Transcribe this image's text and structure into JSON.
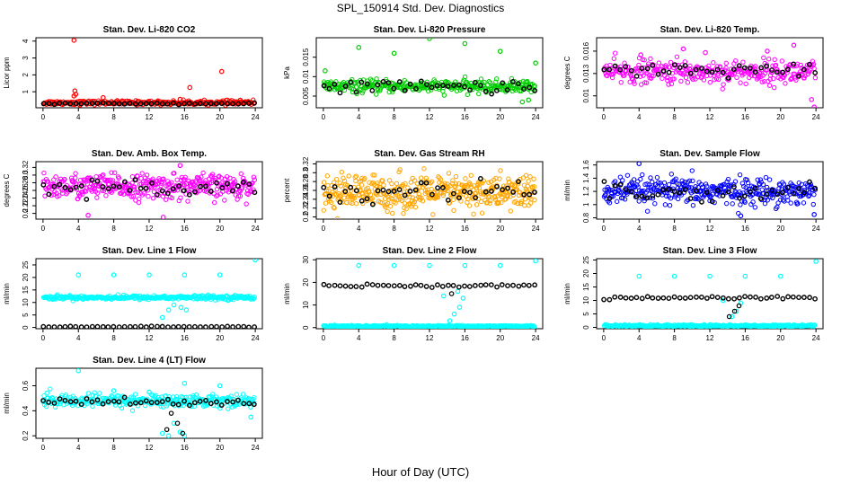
{
  "figure": {
    "title": "SPL_150914  Std. Dev. Diagnostics",
    "xlabel": "Hour of Day (UTC)"
  },
  "chart_data": [
    {
      "type": "scatter",
      "title": "Stan. Dev. Li-820 CO2",
      "ylabel": "Licor ppm",
      "xticks": [
        0,
        4,
        8,
        12,
        16,
        20,
        24
      ],
      "yticks": [
        1,
        2,
        3,
        4
      ],
      "xlim": [
        -0.8,
        24.8
      ],
      "ylim": [
        0.05,
        4.2
      ],
      "series": [
        {
          "color": "#ff0000",
          "base": 0.35,
          "noise": 0.06,
          "count": 300,
          "outliers": [
            [
              3.5,
              4.05
            ],
            [
              3.6,
              1.05
            ],
            [
              3.7,
              0.85
            ],
            [
              3.5,
              0.75
            ],
            [
              6.8,
              0.65
            ],
            [
              15.5,
              0.55
            ],
            [
              16.6,
              1.25
            ],
            [
              20.2,
              2.2
            ],
            [
              22.3,
              0.5
            ]
          ]
        },
        {
          "color": "#000000",
          "base": 0.3,
          "noise": 0.02,
          "count": 40,
          "outliers": []
        }
      ]
    },
    {
      "type": "scatter",
      "title": "Stan. Dev. Li-820 Pressure",
      "ylabel": "kPa",
      "xticks": [
        0,
        4,
        8,
        12,
        16,
        20,
        24
      ],
      "yticks": [
        0.005,
        0.01,
        0.015
      ],
      "xlim": [
        -0.8,
        24.8
      ],
      "ylim": [
        0.002,
        0.02
      ],
      "series": [
        {
          "color": "#00cc00",
          "base": 0.0075,
          "noise": 0.0008,
          "count": 320,
          "outliers": [
            [
              0.2,
              0.0115
            ],
            [
              4,
              0.0175
            ],
            [
              8,
              0.016
            ],
            [
              12,
              0.0198
            ],
            [
              16,
              0.0185
            ],
            [
              20,
              0.0165
            ],
            [
              24,
              0.0135
            ],
            [
              23.2,
              0.004
            ],
            [
              22.5,
              0.0035
            ]
          ]
        },
        {
          "color": "#000000",
          "base": 0.0075,
          "noise": 0.0008,
          "count": 40,
          "outliers": []
        }
      ]
    },
    {
      "type": "scatter",
      "title": "Stan. Dev. Li-820 Temp.",
      "ylabel": "degrees C",
      "xticks": [
        0,
        4,
        8,
        12,
        16,
        20,
        24
      ],
      "yticks": [
        0.01,
        0.013,
        0.016
      ],
      "xlim": [
        -0.8,
        24.8
      ],
      "ylim": [
        0.0084,
        0.0178
      ],
      "series": [
        {
          "color": "#ff00ff",
          "base": 0.0132,
          "noise": 0.0008,
          "count": 320,
          "outliers": [
            [
              4.2,
              0.0155
            ],
            [
              9,
              0.0163
            ],
            [
              11.5,
              0.0158
            ],
            [
              18.5,
              0.016
            ],
            [
              21.5,
              0.0168
            ],
            [
              23.8,
              0.0085
            ],
            [
              23.5,
              0.0095
            ]
          ]
        },
        {
          "color": "#000000",
          "base": 0.0133,
          "noise": 0.0005,
          "count": 40,
          "outliers": []
        }
      ]
    },
    {
      "type": "scatter",
      "title": "Stan. Dev. Amb. Box Temp.",
      "ylabel": "degrees C",
      "xticks": [
        0,
        4,
        8,
        12,
        16,
        20,
        24
      ],
      "yticks": [
        0.2,
        0.22,
        0.24,
        0.26,
        0.28,
        0.3,
        0.32
      ],
      "xlim": [
        -0.8,
        24.8
      ],
      "ylim": [
        0.185,
        0.335
      ],
      "series": [
        {
          "color": "#ff00ff",
          "base": 0.27,
          "noise": 0.016,
          "count": 380,
          "outliers": [
            [
              13.6,
              0.19
            ],
            [
              5.1,
              0.195
            ],
            [
              15.5,
              0.325
            ]
          ]
        },
        {
          "color": "#000000",
          "base": 0.27,
          "noise": 0.01,
          "count": 40,
          "outliers": []
        }
      ]
    },
    {
      "type": "scatter",
      "title": "Stan. Dev. Gas Stream RH",
      "ylabel": "percent",
      "xticks": [
        0,
        4,
        8,
        12,
        16,
        20,
        24
      ],
      "yticks": [
        0.2,
        0.22,
        0.24,
        0.26,
        0.28,
        0.3,
        0.32
      ],
      "xlim": [
        -0.8,
        24.8
      ],
      "ylim": [
        0.195,
        0.325
      ],
      "series": [
        {
          "color": "#ffa500",
          "base": 0.255,
          "noise": 0.02,
          "count": 420,
          "outliers": []
        },
        {
          "color": "#000000",
          "base": 0.255,
          "noise": 0.015,
          "count": 40,
          "outliers": []
        }
      ]
    },
    {
      "type": "scatter",
      "title": "Stan. Dev. Sample Flow",
      "ylabel": "ml/min",
      "xticks": [
        0,
        4,
        8,
        12,
        16,
        20,
        24
      ],
      "yticks": [
        0.8,
        1,
        1.2,
        1.4,
        1.6
      ],
      "xlim": [
        -0.8,
        24.8
      ],
      "ylim": [
        0.78,
        1.65
      ],
      "series": [
        {
          "color": "#0000ff",
          "base": 1.2,
          "noise": 0.1,
          "count": 380,
          "outliers": [
            [
              4,
              1.62
            ],
            [
              15.5,
              0.83
            ],
            [
              23.8,
              0.85
            ]
          ]
        },
        {
          "color": "#000000",
          "base": 1.2,
          "noise": 0.06,
          "count": 40,
          "outliers": []
        }
      ]
    },
    {
      "type": "scatter",
      "title": "Stan. Dev. Line 1 Flow",
      "ylabel": "ml/min",
      "xticks": [
        0,
        4,
        8,
        12,
        16,
        20,
        24
      ],
      "yticks": [
        0,
        5,
        10,
        15,
        20,
        25
      ],
      "xlim": [
        -0.8,
        24.8
      ],
      "ylim": [
        -0.5,
        27.5
      ],
      "series": [
        {
          "color": "#00ffff",
          "base": 12,
          "noise": 0.4,
          "count": 320,
          "outliers": [
            [
              4,
              21
            ],
            [
              8,
              21
            ],
            [
              12,
              21
            ],
            [
              16,
              21
            ],
            [
              20,
              21
            ],
            [
              24,
              27
            ],
            [
              13.5,
              4
            ],
            [
              14.2,
              7
            ],
            [
              14.8,
              9
            ],
            [
              15.6,
              8
            ],
            [
              16.2,
              7
            ]
          ]
        },
        {
          "color": "#000000",
          "base": 0.3,
          "noise": 0.1,
          "count": 40,
          "outliers": []
        }
      ]
    },
    {
      "type": "scatter",
      "title": "Stan. Dev. Line 2 Flow",
      "ylabel": "ml/min",
      "xticks": [
        0,
        4,
        8,
        12,
        16,
        20,
        24
      ],
      "yticks": [
        0,
        10,
        20,
        30
      ],
      "xlim": [
        -0.8,
        24.8
      ],
      "ylim": [
        -0.5,
        30.5
      ],
      "series": [
        {
          "color": "#00ffff",
          "base": 0.6,
          "noise": 0.2,
          "count": 320,
          "outliers": [
            [
              4,
              27.5
            ],
            [
              8,
              27.5
            ],
            [
              12,
              27.5
            ],
            [
              16,
              27.5
            ],
            [
              20,
              27.5
            ],
            [
              24,
              29.5
            ],
            [
              14.3,
              3
            ],
            [
              14.8,
              6
            ],
            [
              15.4,
              9
            ],
            [
              15.8,
              13
            ],
            [
              13.6,
              14
            ],
            [
              15.2,
              16
            ]
          ]
        },
        {
          "color": "#000000",
          "base": 18.5,
          "noise": 0.3,
          "count": 40,
          "outliers": [
            [
              14.5,
              15
            ]
          ]
        }
      ]
    },
    {
      "type": "scatter",
      "title": "Stan. Dev. Line 3 Flow",
      "ylabel": "ml/min",
      "xticks": [
        0,
        4,
        8,
        12,
        16,
        20,
        24
      ],
      "yticks": [
        0,
        5,
        10,
        15,
        20,
        25
      ],
      "xlim": [
        -0.8,
        24.8
      ],
      "ylim": [
        -0.5,
        25.5
      ],
      "series": [
        {
          "color": "#00ffff",
          "base": 0.6,
          "noise": 0.2,
          "count": 320,
          "outliers": [
            [
              4,
              19
            ],
            [
              8,
              19
            ],
            [
              12,
              19
            ],
            [
              16,
              19
            ],
            [
              20,
              19
            ],
            [
              24,
              24.5
            ],
            [
              14.5,
              4
            ],
            [
              15,
              6
            ],
            [
              15.5,
              9
            ],
            [
              13.5,
              10
            ]
          ]
        },
        {
          "color": "#000000",
          "base": 11,
          "noise": 0.3,
          "count": 40,
          "outliers": [
            [
              14.2,
              4
            ],
            [
              14.8,
              6
            ],
            [
              15.3,
              8
            ]
          ]
        }
      ]
    },
    {
      "type": "scatter",
      "title": "Stan. Dev. Line 4 (LT) Flow",
      "ylabel": "ml/min",
      "xticks": [
        0,
        4,
        8,
        12,
        16,
        20,
        24
      ],
      "yticks": [
        0.2,
        0.4,
        0.6
      ],
      "xlim": [
        -0.8,
        24.8
      ],
      "ylim": [
        0.18,
        0.74
      ],
      "series": [
        {
          "color": "#00ffff",
          "base": 0.48,
          "noise": 0.025,
          "count": 320,
          "outliers": [
            [
              4,
              0.72
            ],
            [
              8,
              0.56
            ],
            [
              12,
              0.55
            ],
            [
              16,
              0.62
            ],
            [
              20,
              0.6
            ],
            [
              23.5,
              0.35
            ],
            [
              13.5,
              0.22
            ],
            [
              14.2,
              0.2
            ],
            [
              14.8,
              0.3
            ],
            [
              15.5,
              0.23
            ],
            [
              16,
              0.2
            ]
          ]
        },
        {
          "color": "#000000",
          "base": 0.47,
          "noise": 0.015,
          "count": 40,
          "outliers": [
            [
              14.5,
              0.38
            ],
            [
              15.2,
              0.3
            ],
            [
              14,
              0.25
            ],
            [
              15.8,
              0.22
            ]
          ]
        }
      ]
    }
  ]
}
